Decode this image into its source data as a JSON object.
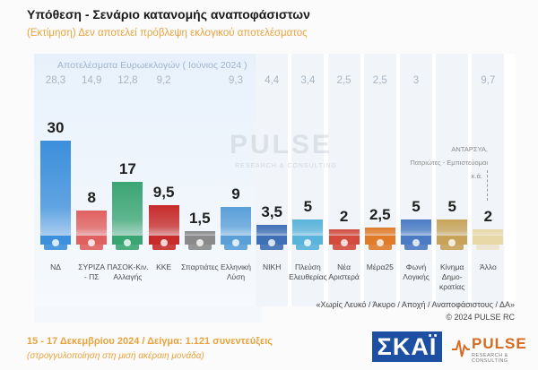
{
  "header": {
    "title": "Υπόθεση - Σενάριο κατανομής αναποφάσιστων",
    "subtitle": "(Εκτίμηση)   Δεν αποτελεί πρόβλεψη εκλογικού αποτελέσματος"
  },
  "reference": {
    "title": "Αποτελέσματα Ευρωεκλογών  ( Ιούνιος 2024 )"
  },
  "other_note": {
    "line1": "ΑΝΤΑΡΣΥΑ,",
    "line2": "Πατριώτες - Εμπιστεύομαι",
    "line3": "κ.ά."
  },
  "footnotes": {
    "excluded": "«Χωρίς Λευκό / Άκυρο / Αποχή / Αναποφάσιστους / ΔΑ»",
    "copyright": "©  2024  PULSE RC"
  },
  "footer": {
    "date_sample": "15 - 17 Δεκεμβρίου 2024  /  Δείγμα:  1.121 συνεντεύξεις",
    "rounding": "(στρογγυλοποίηση στη μισή ακέραιη μονάδα)"
  },
  "logos": {
    "skai": "ΣΚΑΪ",
    "pulse": "PULSE",
    "pulse_tag": "RESEARCH & CONSULTING"
  },
  "watermark": {
    "name": "PULSE",
    "tag": "RESEARCH & CONSULTING"
  },
  "chart_data": {
    "type": "bar",
    "categories": [
      "ΝΔ",
      "ΣΥΡΙΖΑ - ΠΣ",
      "ΠΑΣΟΚ-Κιν. Αλλαγής",
      "ΚΚΕ",
      "Σπαρτιάτες",
      "Ελληνική Λύση",
      "ΝΙΚΗ",
      "Πλεύση Ελευθερίας",
      "Νέα Αριστερά",
      "Μέρα25",
      "Φωνή Λογικής",
      "Κίνημα Δημοκρατίας",
      "Άλλο"
    ],
    "category_lines": [
      [
        "ΝΔ"
      ],
      [
        "ΣΥΡΙΖΑ",
        "- ΠΣ"
      ],
      [
        "ΠΑΣΟΚ-Κιν.",
        "Αλλαγής"
      ],
      [
        "ΚΚΕ"
      ],
      [
        "Σπαρτιάτες"
      ],
      [
        "Ελληνική",
        "Λύση"
      ],
      [
        "ΝΙΚΗ"
      ],
      [
        "Πλεύση",
        "Ελευθερίας"
      ],
      [
        "Νέα",
        "Αριστερά"
      ],
      [
        "Μέρα25"
      ],
      [
        "Φωνή",
        "Λογικής"
      ],
      [
        "Κίνημα",
        "Δημο-",
        "κρατίας"
      ],
      [
        "Άλλο"
      ]
    ],
    "value_labels": [
      "30",
      "8",
      "17",
      "9,5",
      "1,5",
      "9",
      "3,5",
      "5",
      "2",
      "2,5",
      "5",
      "5",
      "2"
    ],
    "series": [
      {
        "values": [
          30,
          8,
          17,
          9.5,
          1.5,
          9,
          3.5,
          5,
          2,
          2.5,
          5,
          5,
          2
        ]
      },
      {
        "values": [
          28.3,
          14.9,
          12.8,
          9.2,
          null,
          9.3,
          4.4,
          3.4,
          2.5,
          2.5,
          3,
          null,
          9.7
        ]
      }
    ],
    "reference_labels": [
      "28,3",
      "14,9",
      "12,8",
      "9,2",
      "",
      "9,3",
      "4,4",
      "3,4",
      "2,5",
      "2,5",
      "3",
      "",
      "9,7"
    ],
    "colors": [
      "#3c8fdb",
      "#e0615f",
      "#3aa573",
      "#c62b2b",
      "#8a8a8a",
      "#5a9fd8",
      "#3f6fb5",
      "#59b3d9",
      "#d14b3c",
      "#e07b2a",
      "#4a7bc4",
      "#c6a35a",
      "#e8d8a8"
    ],
    "icons": [
      "nd-logo-icon",
      "syriza-logo-icon",
      "pasok-logo-icon",
      "kke-logo-icon",
      "spartiates-logo-icon",
      "elliniki-lysi-logo-icon",
      "niki-logo-icon",
      "plefsi-logo-icon",
      "nea-aristera-logo-icon",
      "mera25-logo-icon",
      "foni-logikis-logo-icon",
      "kinima-logo-icon",
      "allo-icon"
    ],
    "ylim": [
      0,
      32
    ]
  }
}
